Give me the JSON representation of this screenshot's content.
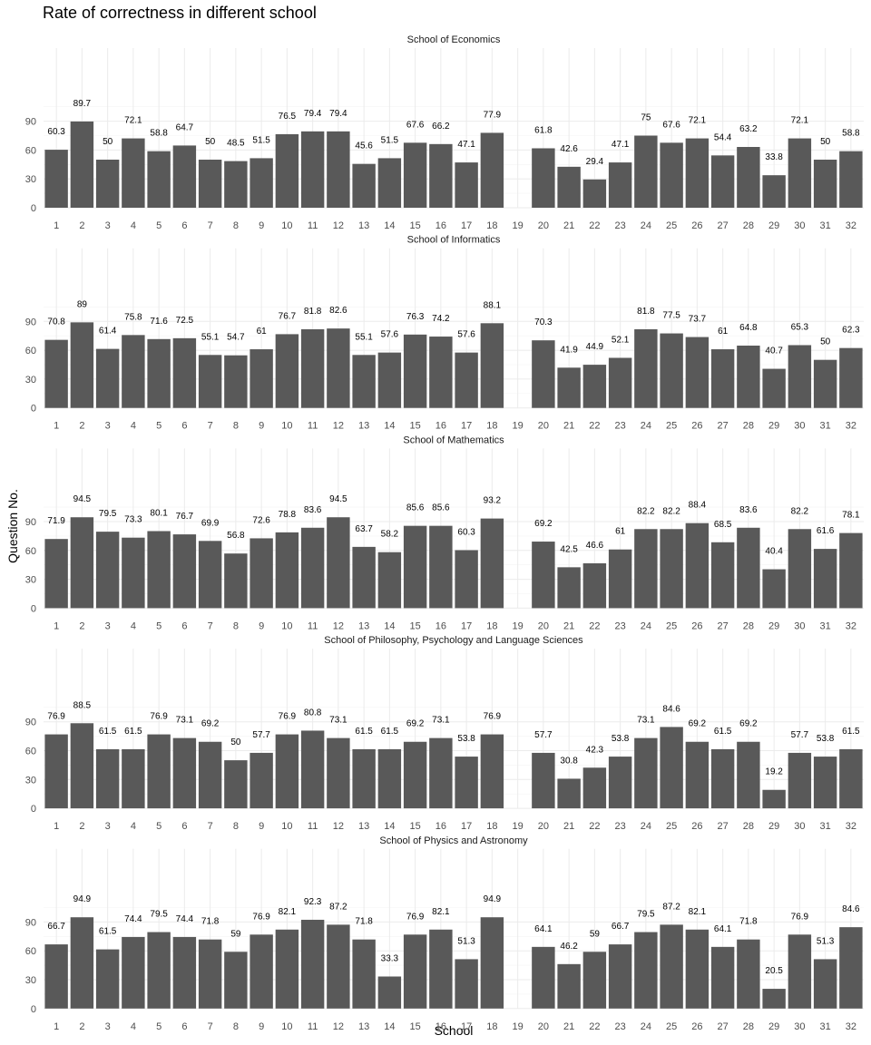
{
  "chart_data": {
    "type": "bar",
    "title": "Rate of correctness in different school",
    "xlabel": "School",
    "ylabel": "Question No.",
    "ylim": [
      0,
      100
    ],
    "yticks": [
      0,
      30,
      60,
      90
    ],
    "grid": true,
    "bar_color": "#595959",
    "categories": [
      "1",
      "2",
      "3",
      "4",
      "5",
      "6",
      "7",
      "8",
      "9",
      "10",
      "11",
      "12",
      "13",
      "14",
      "15",
      "16",
      "17",
      "18",
      "19",
      "20",
      "21",
      "22",
      "23",
      "24",
      "25",
      "26",
      "27",
      "28",
      "29",
      "30",
      "31",
      "32"
    ],
    "panels": [
      {
        "name": "School of Economics",
        "values": [
          60.3,
          89.7,
          50,
          72.1,
          58.8,
          64.7,
          50,
          48.5,
          51.5,
          76.5,
          79.4,
          79.4,
          45.6,
          51.5,
          67.6,
          66.2,
          47.1,
          77.9,
          null,
          61.8,
          42.6,
          29.4,
          47.1,
          75,
          67.6,
          72.1,
          54.4,
          63.2,
          33.8,
          72.1,
          50,
          58.8
        ]
      },
      {
        "name": "School of Informatics",
        "values": [
          70.8,
          89,
          61.4,
          75.8,
          71.6,
          72.5,
          55.1,
          54.7,
          61,
          76.7,
          81.8,
          82.6,
          55.1,
          57.6,
          76.3,
          74.2,
          57.6,
          88.1,
          null,
          70.3,
          41.9,
          44.9,
          52.1,
          81.8,
          77.5,
          73.7,
          61,
          64.8,
          40.7,
          65.3,
          50,
          62.3
        ]
      },
      {
        "name": "School of Mathematics",
        "values": [
          71.9,
          94.5,
          79.5,
          73.3,
          80.1,
          76.7,
          69.9,
          56.8,
          72.6,
          78.8,
          83.6,
          94.5,
          63.7,
          58.2,
          85.6,
          85.6,
          60.3,
          93.2,
          null,
          69.2,
          42.5,
          46.6,
          61,
          82.2,
          82.2,
          88.4,
          68.5,
          83.6,
          40.4,
          82.2,
          61.6,
          78.1
        ]
      },
      {
        "name": "School of Philosophy, Psychology and Language Sciences",
        "values": [
          76.9,
          88.5,
          61.5,
          61.5,
          76.9,
          73.1,
          69.2,
          50,
          57.7,
          76.9,
          80.8,
          73.1,
          61.5,
          61.5,
          69.2,
          73.1,
          53.8,
          76.9,
          null,
          57.7,
          30.8,
          42.3,
          53.8,
          73.1,
          84.6,
          69.2,
          61.5,
          69.2,
          19.2,
          57.7,
          53.8,
          61.5
        ]
      },
      {
        "name": "School of Physics and Astronomy",
        "values": [
          66.7,
          94.9,
          61.5,
          74.4,
          79.5,
          74.4,
          71.8,
          59,
          76.9,
          82.1,
          92.3,
          87.2,
          71.8,
          33.3,
          76.9,
          82.1,
          51.3,
          94.9,
          null,
          64.1,
          46.2,
          59,
          66.7,
          79.5,
          87.2,
          82.1,
          64.1,
          71.8,
          20.5,
          76.9,
          51.3,
          84.6
        ]
      }
    ]
  }
}
